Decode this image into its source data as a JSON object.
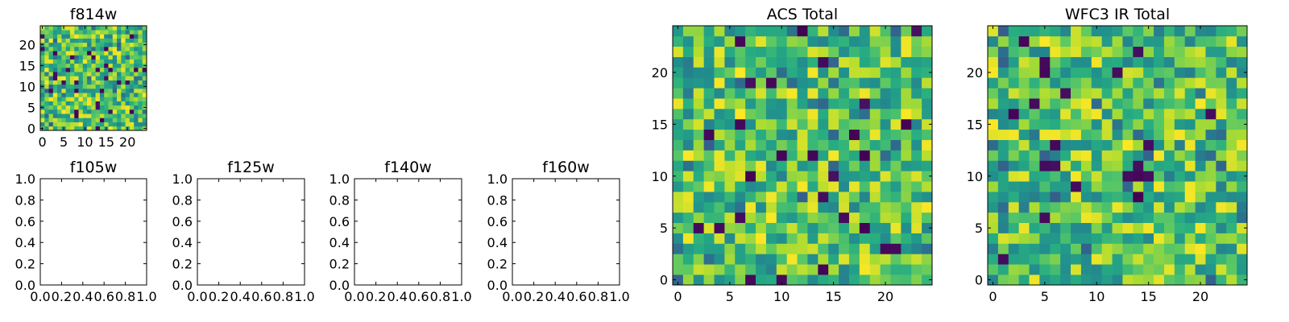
{
  "chart_data": [
    {
      "type": "heatmap",
      "title": "f814w",
      "xlabel": "",
      "ylabel": "",
      "grid": "25x25",
      "colormap": "viridis",
      "xlim": [
        -0.5,
        24.5
      ],
      "ylim": [
        -0.5,
        24.5
      ],
      "xticks": [
        "0",
        "5",
        "10",
        "15",
        "20"
      ],
      "yticks": [
        "0",
        "5",
        "10",
        "15",
        "20"
      ],
      "value_range": [
        0,
        1
      ],
      "seed": 814
    },
    {
      "type": "line",
      "title": "f105w",
      "xlabel": "",
      "ylabel": "",
      "xlim": [
        0,
        1
      ],
      "ylim": [
        0,
        1
      ],
      "xticks": [
        "0.0",
        "0.2",
        "0.4",
        "0.6",
        "0.8",
        "1.0"
      ],
      "yticks": [
        "0.0",
        "0.2",
        "0.4",
        "0.6",
        "0.8",
        "1.0"
      ],
      "series": []
    },
    {
      "type": "line",
      "title": "f125w",
      "xlabel": "",
      "ylabel": "",
      "xlim": [
        0,
        1
      ],
      "ylim": [
        0,
        1
      ],
      "xticks": [
        "0.0",
        "0.2",
        "0.4",
        "0.6",
        "0.8",
        "1.0"
      ],
      "yticks": [
        "0.0",
        "0.2",
        "0.4",
        "0.6",
        "0.8",
        "1.0"
      ],
      "series": []
    },
    {
      "type": "line",
      "title": "f140w",
      "xlabel": "",
      "ylabel": "",
      "xlim": [
        0,
        1
      ],
      "ylim": [
        0,
        1
      ],
      "xticks": [
        "0.0",
        "0.2",
        "0.4",
        "0.6",
        "0.8",
        "1.0"
      ],
      "yticks": [
        "0.0",
        "0.2",
        "0.4",
        "0.6",
        "0.8",
        "1.0"
      ],
      "series": []
    },
    {
      "type": "line",
      "title": "f160w",
      "xlabel": "",
      "ylabel": "",
      "xlim": [
        0,
        1
      ],
      "ylim": [
        0,
        1
      ],
      "xticks": [
        "0.0",
        "0.2",
        "0.4",
        "0.6",
        "0.8",
        "1.0"
      ],
      "yticks": [
        "0.0",
        "0.2",
        "0.4",
        "0.6",
        "0.8",
        "1.0"
      ],
      "series": []
    },
    {
      "type": "heatmap",
      "title": "ACS Total",
      "xlabel": "",
      "ylabel": "",
      "grid": "25x25",
      "colormap": "viridis",
      "xlim": [
        -0.5,
        24.5
      ],
      "ylim": [
        -0.5,
        24.5
      ],
      "xticks": [
        "0",
        "5",
        "10",
        "15",
        "20"
      ],
      "yticks": [
        "0",
        "5",
        "10",
        "15",
        "20"
      ],
      "value_range": [
        0,
        1
      ],
      "seed": 1001
    },
    {
      "type": "heatmap",
      "title": "WFC3 IR Total",
      "xlabel": "",
      "ylabel": "",
      "grid": "25x25",
      "colormap": "viridis",
      "xlim": [
        -0.5,
        24.5
      ],
      "ylim": [
        -0.5,
        24.5
      ],
      "xticks": [
        "0",
        "5",
        "10",
        "15",
        "20"
      ],
      "yticks": [
        "0",
        "5",
        "10",
        "15",
        "20"
      ],
      "value_range": [
        0,
        1
      ],
      "seed": 2002
    }
  ]
}
